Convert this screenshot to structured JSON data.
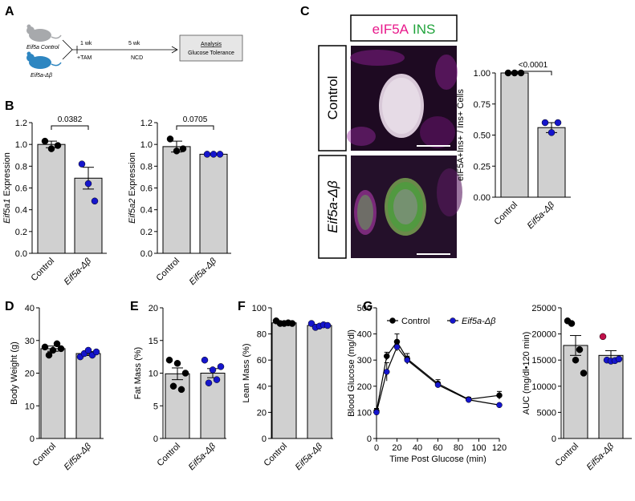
{
  "panel_letters": {
    "A": "A",
    "B": "B",
    "C": "C",
    "D": "D",
    "E": "E",
    "F": "F",
    "G": "G"
  },
  "schematic": {
    "control_label": "Eif5a Control",
    "ko_label": "Eif5a-Δβ",
    "step1_top": "1 wk",
    "step1_bottom": "+TAM",
    "step2_top": "5 wk",
    "step2_bottom": "NCD",
    "box_title": "Analysis",
    "box_sub": "Glucose Tolerance",
    "colors": {
      "control_mouse": "#a7a9ac",
      "ko_mouse": "#2e86c1"
    }
  },
  "microscopy": {
    "title_a": "eIF5A",
    "title_b": "INS",
    "row_control": "Control",
    "row_ko": "Eif5a-Δβ",
    "colors": {
      "eIF5A": "#e8198b",
      "INS": "#1fa33a"
    }
  },
  "colors": {
    "control": "#000000",
    "ko": "#1515cc",
    "ko_outlier": "#c0104a",
    "bar": "#d0d0d0"
  },
  "chart_data": [
    {
      "id": "B1",
      "type": "bar",
      "categories": [
        "Control",
        "Eif5a-Δβ"
      ],
      "values": [
        1.0,
        0.69
      ],
      "errors": [
        0.03,
        0.1
      ],
      "points": [
        [
          1.03,
          0.96,
          0.99
        ],
        [
          0.82,
          0.64,
          0.48
        ]
      ],
      "ylabel": "Eif5a1 Expression",
      "ylim": [
        0,
        1.2
      ],
      "yticks": [
        "0.0",
        "0.2",
        "0.4",
        "0.6",
        "0.8",
        "1.0",
        "1.2"
      ],
      "pvalue": "0.0382"
    },
    {
      "id": "B2",
      "type": "bar",
      "categories": [
        "Control",
        "Eif5a-Δβ"
      ],
      "values": [
        0.98,
        0.91
      ],
      "errors": [
        0.05,
        0.005
      ],
      "points": [
        [
          1.05,
          0.94,
          0.96
        ],
        [
          0.91,
          0.91,
          0.91
        ]
      ],
      "ylabel": "Eif5a2 Expression",
      "ylim": [
        0,
        1.2
      ],
      "yticks": [
        "0.0",
        "0.2",
        "0.4",
        "0.6",
        "0.8",
        "1.0",
        "1.2"
      ],
      "pvalue": "0.0705"
    },
    {
      "id": "C",
      "type": "bar",
      "categories": [
        "Control",
        "Eif5a-Δβ"
      ],
      "values": [
        1.0,
        0.56
      ],
      "errors": [
        0.0,
        0.04
      ],
      "points": [
        [
          1.0,
          1.0,
          1.0
        ],
        [
          0.6,
          0.52,
          0.6
        ]
      ],
      "ylabel": "eIF5A+Ins+ / Ins+ Cells",
      "ylim": [
        0,
        1.0
      ],
      "yticks": [
        "0.00",
        "0.25",
        "0.50",
        "0.75",
        "1.00"
      ],
      "pvalue": "<0.0001"
    },
    {
      "id": "D",
      "type": "bar",
      "categories": [
        "Control",
        "Eif5a-Δβ"
      ],
      "values": [
        27.5,
        26.0
      ],
      "errors": [
        0.8,
        0.6
      ],
      "points": [
        [
          28,
          25.5,
          27,
          29,
          27.5
        ],
        [
          25,
          26,
          27,
          25.5,
          26.5
        ]
      ],
      "ylabel": "Body Weight (g)",
      "ylim": [
        0,
        40
      ],
      "yticks": [
        "0",
        "10",
        "20",
        "30",
        "40"
      ]
    },
    {
      "id": "E",
      "type": "bar",
      "categories": [
        "Control",
        "Eif5a-Δβ"
      ],
      "values": [
        9.9,
        10.0
      ],
      "errors": [
        0.9,
        0.7
      ],
      "points": [
        [
          12,
          8,
          11.5,
          7.5,
          10
        ],
        [
          12,
          8.5,
          10.5,
          9,
          11
        ]
      ],
      "ylabel": "Fat Mass (%)",
      "ylim": [
        0,
        20
      ],
      "yticks": [
        "0",
        "5",
        "10",
        "15",
        "20"
      ]
    },
    {
      "id": "F",
      "type": "bar",
      "categories": [
        "Control",
        "Eif5a-Δβ"
      ],
      "values": [
        88.5,
        86.5
      ],
      "errors": [
        0.5,
        0.8
      ],
      "points": [
        [
          90,
          88,
          88,
          88.5,
          88
        ],
        [
          88,
          85,
          86,
          87,
          86.5
        ]
      ],
      "ylabel": "Lean Mass (%)",
      "ylim": [
        0,
        100
      ],
      "yticks": [
        "0",
        "20",
        "40",
        "60",
        "80",
        "100"
      ]
    },
    {
      "id": "G1",
      "type": "line",
      "x": [
        0,
        10,
        20,
        30,
        60,
        90,
        120
      ],
      "xlabel": "Time Post Glucose (min)",
      "ylabel": "Blood Glucose (mg/dl)",
      "xlim": [
        0,
        120
      ],
      "ylim": [
        0,
        500
      ],
      "xticks": [
        "0",
        "20",
        "40",
        "60",
        "80",
        "100",
        "120"
      ],
      "yticks": [
        "0",
        "100",
        "200",
        "300",
        "400",
        "500"
      ],
      "series": [
        {
          "name": "Control",
          "values": [
            105,
            315,
            370,
            305,
            210,
            150,
            165
          ],
          "errors": [
            10,
            15,
            30,
            20,
            15,
            8,
            15
          ]
        },
        {
          "name": "Eif5a-Δβ",
          "values": [
            100,
            255,
            350,
            300,
            205,
            148,
            128
          ],
          "errors": [
            8,
            35,
            15,
            15,
            10,
            8,
            5
          ]
        }
      ]
    },
    {
      "id": "G2",
      "type": "bar",
      "categories": [
        "Control",
        "Eif5a-Δβ"
      ],
      "values": [
        17800,
        15900
      ],
      "errors": [
        1900,
        900
      ],
      "points": [
        [
          22500,
          22000,
          15000,
          17000,
          12500
        ],
        [
          19500,
          15000,
          14800,
          14900,
          15200
        ]
      ],
      "ylabel": "AUC (mg/dl•120 min)",
      "ylim": [
        0,
        25000
      ],
      "yticks": [
        "0",
        "5000",
        "10000",
        "15000",
        "20000",
        "25000"
      ]
    }
  ]
}
